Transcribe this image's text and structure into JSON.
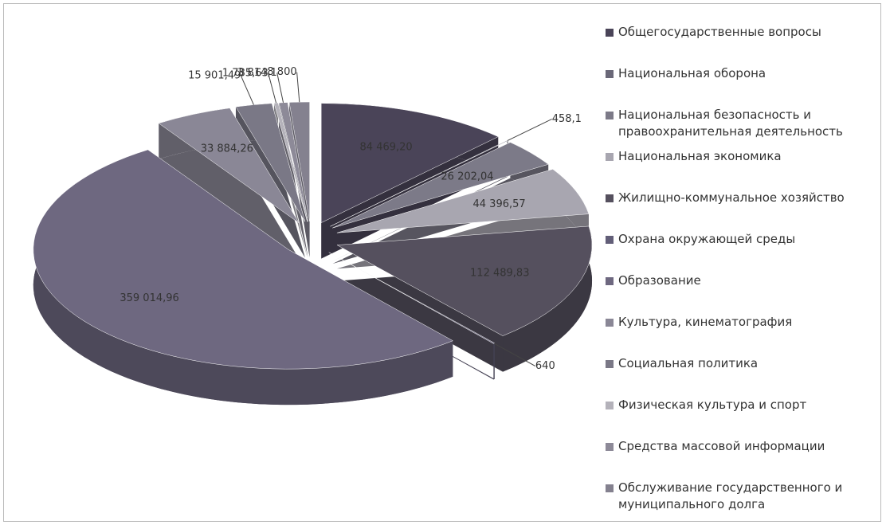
{
  "chart_data": {
    "type": "pie",
    "categories": [
      "Общегосударственные вопросы",
      "Национальная оборона",
      "Национальная безопасность и правоохранительная деятельность",
      "Национальная экономика",
      "Жилищно-коммунальное хозяйство",
      "Охрана окружающей среды",
      "Образование",
      "Культура, кинематография",
      "Социальная политика",
      "Физическая культура и спорт",
      "Средства массовой информации",
      "Обслуживание государственного и муниципального долга"
    ],
    "values": [
      84469.2,
      458.1,
      26202.04,
      44396.57,
      112489.83,
      640,
      359014.96,
      33884.26,
      15901.49,
      1785.63,
      3814.1,
      8800
    ],
    "value_labels": [
      "84 469,20",
      "458,1",
      "26 202,04",
      "44 396,57",
      "112 489,83",
      "640",
      "359 014,96",
      "33 884,26",
      "15 901,49",
      "1 785,63",
      "3 814,1",
      "8 800"
    ],
    "colors": [
      "#4a4458",
      "#6a6878",
      "#7c7a88",
      "#a8a6b0",
      "#55505e",
      "#625e78",
      "#6e6880",
      "#8a8796",
      "#7a7886",
      "#b4b2ba",
      "#8d8a98",
      "#84818f"
    ],
    "legend": "right"
  }
}
